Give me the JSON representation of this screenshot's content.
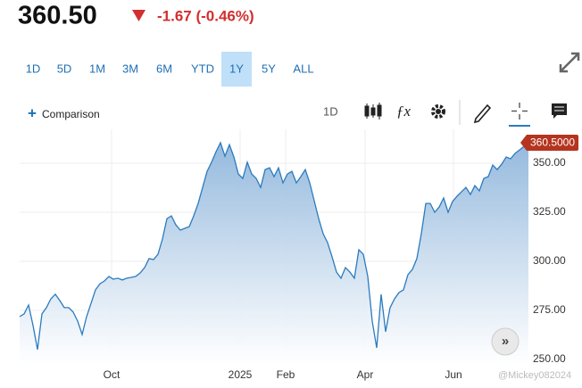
{
  "header": {
    "price": "360.50",
    "change": "-1.67 (-0.46%)"
  },
  "ranges": {
    "items": [
      "1D",
      "5D",
      "1M",
      "3M",
      "6M",
      "YTD",
      "1Y",
      "5Y",
      "ALL"
    ],
    "selected": 6
  },
  "toolbar": {
    "comparison": "Comparison",
    "interval": "1D"
  },
  "watermark": "@Mickey082024",
  "chart_data": {
    "type": "area",
    "color": "#2b7bbf",
    "values": [
      271.8,
      273.2,
      277.7,
      267.3,
      255.0,
      273.2,
      276.4,
      280.9,
      283.2,
      280.0,
      276.4,
      276.4,
      274.1,
      269.5,
      262.7,
      271.8,
      278.6,
      285.5,
      288.6,
      290.0,
      292.3,
      290.9,
      291.4,
      290.5,
      291.4,
      291.8,
      292.3,
      294.1,
      296.8,
      301.4,
      300.9,
      303.6,
      311.4,
      321.8,
      323.2,
      318.6,
      315.9,
      316.8,
      317.7,
      323.2,
      329.5,
      337.7,
      345.9,
      350.5,
      355.9,
      360.5,
      353.6,
      359.5,
      353.2,
      344.5,
      342.3,
      350.5,
      344.5,
      342.3,
      337.7,
      346.8,
      347.7,
      343.2,
      347.7,
      340.0,
      344.5,
      345.9,
      340.0,
      343.2,
      346.8,
      340.0,
      330.9,
      321.8,
      314.1,
      309.5,
      302.3,
      294.5,
      291.4,
      296.8,
      294.5,
      291.4,
      305.9,
      303.6,
      292.3,
      269.5,
      255.9,
      283.2,
      264.1,
      276.4,
      280.9,
      284.1,
      285.5,
      293.2,
      295.9,
      301.4,
      314.1,
      329.5,
      329.5,
      325.0,
      327.7,
      332.3,
      325.0,
      330.5,
      333.2,
      335.5,
      337.7,
      334.1,
      338.6,
      335.9,
      342.3,
      343.2,
      349.1,
      346.8,
      349.5,
      353.2,
      352.3,
      355.0,
      356.8,
      358.6,
      360.5
    ],
    "last_label": "360.5000",
    "xlim": [
      0,
      114
    ],
    "xticks": [
      {
        "value": 20.6,
        "label": "Oct"
      },
      {
        "value": 49.4,
        "label": "2025"
      },
      {
        "value": 59.6,
        "label": "Feb"
      },
      {
        "value": 77.4,
        "label": "Apr"
      },
      {
        "value": 97.2,
        "label": "Jun"
      }
    ],
    "ylim": [
      247.7,
      367.3
    ],
    "yticks": [
      {
        "value": 250,
        "label": "250.00"
      },
      {
        "value": 275,
        "label": "275.00"
      },
      {
        "value": 300,
        "label": "300.00"
      },
      {
        "value": 325,
        "label": "325.00"
      },
      {
        "value": 350,
        "label": "350.00"
      }
    ],
    "grid": true
  }
}
